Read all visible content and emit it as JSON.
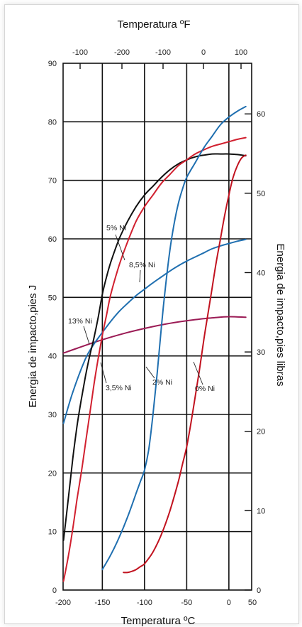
{
  "chart_data": {
    "type": "line",
    "xlabel_top": "Temperatura ºF",
    "xlabel_bottom": "Temperatura ºC",
    "ylabel_left": "Energia de impacto,pies J",
    "ylabel_right": "Energia de impacto,pies libras",
    "xlim": [
      -200,
      25
    ],
    "ylim": [
      0,
      90
    ],
    "x_ticks_bottom": [
      "-200",
      "-150",
      "-100",
      "-50",
      "0",
      "50"
    ],
    "x_ticks_top": [
      "-100",
      "-200",
      "-100",
      "0",
      "100"
    ],
    "y_ticks_left": [
      "0",
      "10",
      "20",
      "30",
      "40",
      "50",
      "60",
      "70",
      "80",
      "90"
    ],
    "y_ticks_right": [
      "0",
      "10",
      "20",
      "30",
      "40",
      "50",
      "60"
    ],
    "grid": true,
    "series": [
      {
        "name": "13% Ni",
        "color": "#9b1b55",
        "x": [
          -196,
          -180,
          -160,
          -140,
          -120,
          -100,
          -80,
          -60,
          -40,
          -20,
          0,
          20
        ],
        "y": [
          40.5,
          41.3,
          42.3,
          43.2,
          44.0,
          44.7,
          45.3,
          45.8,
          46.2,
          46.5,
          46.7,
          46.6
        ]
      },
      {
        "name": "8,5% Ni",
        "color": "#1f6fb0",
        "x": [
          -196,
          -185,
          -170,
          -160,
          -150,
          -140,
          -130,
          -120,
          -110,
          -100,
          -90,
          -80,
          -70,
          -60,
          -50,
          -40,
          -30,
          -20,
          -10,
          0,
          10,
          20
        ],
        "y": [
          28.5,
          33.8,
          39.5,
          42.0,
          44.0,
          45.9,
          47.6,
          49.0,
          50.3,
          51.4,
          52.5,
          53.5,
          54.5,
          55.4,
          56.2,
          56.9,
          57.6,
          58.3,
          58.8,
          59.2,
          59.6,
          59.9
        ]
      },
      {
        "name": "5% Ni",
        "color": "#111111",
        "x": [
          -196,
          -190,
          -185,
          -180,
          -175,
          -170,
          -165,
          -160,
          -155,
          -150,
          -145,
          -140,
          -130,
          -120,
          -110,
          -100,
          -90,
          -80,
          -70,
          -60,
          -50,
          -40,
          -30,
          -20,
          -10,
          0,
          10,
          20
        ],
        "y": [
          8.5,
          16.0,
          22.5,
          28.0,
          32.5,
          36.5,
          40.0,
          43.0,
          46.5,
          50.5,
          53.5,
          56.0,
          60.0,
          63.0,
          65.5,
          67.5,
          69.0,
          70.5,
          71.8,
          72.8,
          73.5,
          74.0,
          74.3,
          74.5,
          74.5,
          74.5,
          74.4,
          74.2
        ]
      },
      {
        "name": "3,5% Ni",
        "color": "#d1202f",
        "x": [
          -196,
          -190,
          -185,
          -180,
          -175,
          -170,
          -165,
          -160,
          -155,
          -150,
          -145,
          -140,
          -130,
          -120,
          -110,
          -100,
          -90,
          -80,
          -70,
          -60,
          -50,
          -40,
          -30,
          -20,
          -10,
          0,
          10,
          20
        ],
        "y": [
          1.5,
          6.0,
          10.5,
          15.5,
          20.0,
          25.0,
          30.0,
          35.0,
          39.5,
          43.5,
          47.0,
          50.5,
          55.5,
          59.5,
          63.0,
          65.5,
          67.5,
          69.5,
          71.0,
          72.5,
          73.5,
          74.5,
          75.2,
          75.8,
          76.2,
          76.6,
          77.0,
          77.3
        ]
      },
      {
        "name": "2% Ni",
        "color": "#1f6fb0",
        "x": [
          -150,
          -140,
          -130,
          -120,
          -110,
          -105,
          -100,
          -95,
          -90,
          -85,
          -80,
          -75,
          -70,
          -65,
          -60,
          -55,
          -50,
          -40,
          -30,
          -20,
          -10,
          0,
          10,
          20
        ],
        "y": [
          3.5,
          6.0,
          9.0,
          12.5,
          16.5,
          18.5,
          20.5,
          24.0,
          30.0,
          37.0,
          45.0,
          52.0,
          58.0,
          62.5,
          66.0,
          68.5,
          70.5,
          73.0,
          75.5,
          77.5,
          79.5,
          80.8,
          81.8,
          82.6
        ]
      },
      {
        "name": "0% Ni",
        "color": "#c1121f",
        "x": [
          -125,
          -120,
          -115,
          -110,
          -105,
          -100,
          -90,
          -80,
          -70,
          -60,
          -55,
          -50,
          -45,
          -40,
          -35,
          -30,
          -25,
          -20,
          -15,
          -10,
          -5,
          0,
          5,
          10,
          15,
          20
        ],
        "y": [
          3.0,
          3.0,
          3.2,
          3.5,
          4.0,
          4.5,
          6.5,
          9.5,
          13.5,
          18.5,
          21.5,
          24.5,
          28.5,
          33.0,
          37.5,
          42.5,
          47.0,
          51.5,
          56.0,
          60.0,
          64.0,
          67.5,
          70.5,
          72.5,
          73.8,
          74.3
        ]
      }
    ],
    "labels": [
      {
        "text": "13% Ni",
        "series": "13% Ni"
      },
      {
        "text": "8,5% Ni",
        "series": "8,5% Ni"
      },
      {
        "text": "5% Ni",
        "series": "5% Ni"
      },
      {
        "text": "3,5% Ni",
        "series": "3,5% Ni"
      },
      {
        "text": "2% Ni",
        "series": "2% Ni"
      },
      {
        "text": "0% Ni",
        "series": "0% Ni"
      }
    ]
  }
}
